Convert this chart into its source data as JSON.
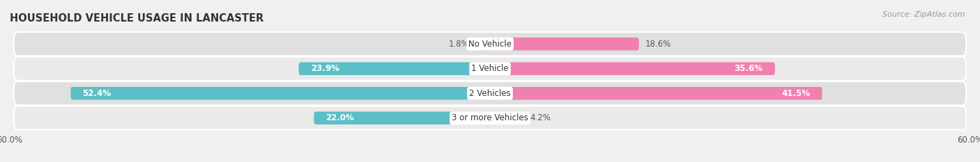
{
  "title": "HOUSEHOLD VEHICLE USAGE IN LANCASTER",
  "source": "Source: ZipAtlas.com",
  "categories": [
    "No Vehicle",
    "1 Vehicle",
    "2 Vehicles",
    "3 or more Vehicles"
  ],
  "owner_values": [
    1.8,
    23.9,
    52.4,
    22.0
  ],
  "renter_values": [
    18.6,
    35.6,
    41.5,
    4.2
  ],
  "owner_color": "#5BBFC8",
  "renter_color": "#F080B0",
  "bar_height": 0.52,
  "xlim": [
    -60,
    60
  ],
  "background_color": "#f0f0f0",
  "row_bg_light": "#eaeaea",
  "row_bg_dark": "#e0e0e0",
  "title_fontsize": 10.5,
  "label_fontsize": 8.5,
  "legend_fontsize": 9,
  "source_fontsize": 8,
  "inside_label_threshold_owner": 15,
  "inside_label_threshold_renter": 20
}
